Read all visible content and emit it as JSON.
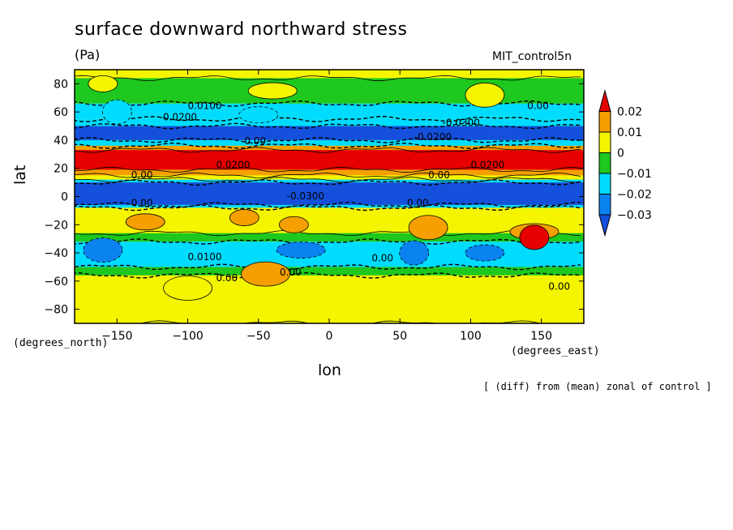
{
  "chart_data": {
    "type": "heatmap",
    "title": "surface downward northward stress",
    "units": "(Pa)",
    "run_label": "MIT_control5n",
    "xlabel": "lon",
    "ylabel": "lat",
    "x_unit_label": "(degrees_east)",
    "y_unit_label": "(degrees_north)",
    "note": "[ (diff) from (mean) zonal of control ]",
    "xlim": [
      -180,
      180
    ],
    "ylim": [
      -90,
      90
    ],
    "x_ticks": [
      -150,
      -100,
      -50,
      0,
      50,
      100,
      150
    ],
    "y_ticks": [
      -80,
      -60,
      -40,
      -20,
      0,
      20,
      40,
      60,
      80
    ],
    "x_tick_labels": [
      "−150",
      "−100",
      "−50",
      "0",
      "50",
      "100",
      "150"
    ],
    "y_tick_labels": [
      "−80",
      "−60",
      "−40",
      "−20",
      "0",
      "20",
      "40",
      "60",
      "80"
    ],
    "legend": {
      "placement": "right",
      "levels": [
        0.02,
        0.01,
        0,
        -0.01,
        -0.02,
        -0.03
      ],
      "labels": [
        "0.02",
        "0.01",
        "0",
        "−0.01",
        "−0.02",
        "−0.03"
      ],
      "colors": [
        "#e60000",
        "#f5a000",
        "#f5f500",
        "#1ec81e",
        "#00dcff",
        "#0a82f0",
        "#1450dc"
      ]
    },
    "bands": [
      {
        "lat_from": 90,
        "lat_to": 84,
        "value": 0.005
      },
      {
        "lat_from": 84,
        "lat_to": 66,
        "value": -0.005
      },
      {
        "lat_from": 66,
        "lat_to": 55,
        "value": -0.015
      },
      {
        "lat_from": 55,
        "lat_to": 50,
        "value": -0.015
      },
      {
        "lat_from": 50,
        "lat_to": 40,
        "value": -0.035
      },
      {
        "lat_from": 40,
        "lat_to": 36,
        "value": -0.015
      },
      {
        "lat_from": 36,
        "lat_to": 33,
        "value": 0.015
      },
      {
        "lat_from": 33,
        "lat_to": 19,
        "value": 0.025
      },
      {
        "lat_from": 19,
        "lat_to": 15,
        "value": 0.015
      },
      {
        "lat_from": 15,
        "lat_to": 12,
        "value": 0.005
      },
      {
        "lat_from": 12,
        "lat_to": 10,
        "value": -0.015
      },
      {
        "lat_from": 10,
        "lat_to": -6,
        "value": -0.035
      },
      {
        "lat_from": -6,
        "lat_to": -8,
        "value": -0.015
      },
      {
        "lat_from": -8,
        "lat_to": -26,
        "value": 0.005
      },
      {
        "lat_from": -26,
        "lat_to": -32,
        "value": -0.005
      },
      {
        "lat_from": -32,
        "lat_to": -50,
        "value": -0.015
      },
      {
        "lat_from": -50,
        "lat_to": -56,
        "value": -0.005
      },
      {
        "lat_from": -56,
        "lat_to": -90,
        "value": 0.005
      }
    ],
    "patches": [
      {
        "lon": -60,
        "lat": -15,
        "value": 0.015
      },
      {
        "lon": 70,
        "lat": -22,
        "value": 0.015
      },
      {
        "lon": 145,
        "lat": -25,
        "value": 0.015
      },
      {
        "lon": 145,
        "lat": -29,
        "value": 0.025
      },
      {
        "lon": -130,
        "lat": -18,
        "value": 0.015
      },
      {
        "lon": -45,
        "lat": -55,
        "value": 0.015
      },
      {
        "lon": -25,
        "lat": -20,
        "value": 0.015
      },
      {
        "lon": -160,
        "lat": -38,
        "value": -0.025
      },
      {
        "lon": -20,
        "lat": -38,
        "value": -0.025
      },
      {
        "lon": 60,
        "lat": -40,
        "value": -0.025
      },
      {
        "lon": 110,
        "lat": -40,
        "value": -0.025
      },
      {
        "lon": -100,
        "lat": -65,
        "value": 0.005
      },
      {
        "lon": -160,
        "lat": 80,
        "value": 0.005
      },
      {
        "lon": 110,
        "lat": 72,
        "value": 0.005
      },
      {
        "lon": -40,
        "lat": 75,
        "value": 0.005
      },
      {
        "lon": -150,
        "lat": 60,
        "value": -0.015
      },
      {
        "lon": -50,
        "lat": 58,
        "value": -0.015
      }
    ],
    "contour_labels": [
      {
        "text": "0.0100",
        "lon": -100,
        "lat": 62
      },
      {
        "text": "-0.0200",
        "lon": -120,
        "lat": 54
      },
      {
        "text": "0.00",
        "lon": -60,
        "lat": 37
      },
      {
        "text": "0.00",
        "lon": 140,
        "lat": 62
      },
      {
        "text": "-0.0300",
        "lon": 80,
        "lat": 50
      },
      {
        "text": "-0.0200",
        "lon": 60,
        "lat": 40
      },
      {
        "text": "0.00",
        "lon": -140,
        "lat": 13
      },
      {
        "text": "0.0200",
        "lon": -80,
        "lat": 20
      },
      {
        "text": "0.0200",
        "lon": 100,
        "lat": 20
      },
      {
        "text": "0.00",
        "lon": 70,
        "lat": 13
      },
      {
        "text": "-0.0300",
        "lon": -30,
        "lat": -2
      },
      {
        "text": "0.00",
        "lon": -140,
        "lat": -7
      },
      {
        "text": "0.00",
        "lon": 55,
        "lat": -7
      },
      {
        "text": "0.0100",
        "lon": -100,
        "lat": -45
      },
      {
        "text": "0.00",
        "lon": -80,
        "lat": -60
      },
      {
        "text": "0.00",
        "lon": 30,
        "lat": -46
      },
      {
        "text": "0.00",
        "lon": -35,
        "lat": -56
      },
      {
        "text": "0.00",
        "lon": 155,
        "lat": -66
      }
    ]
  }
}
